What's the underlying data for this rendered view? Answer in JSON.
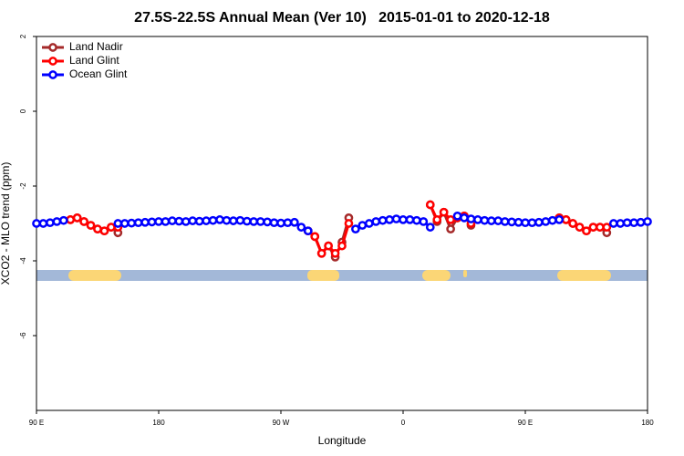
{
  "chart_data": {
    "type": "line",
    "title": "27.5S-22.5S Annual Mean (Ver 10)   2015-01-01 to 2020-12-18",
    "x_label": "Longitude",
    "y_label": "XCO2 - MLO trend (ppm)",
    "xlim": [
      90,
      540
    ],
    "ylim": [
      -8,
      2
    ],
    "xticks": [
      {
        "value": 90,
        "label": "90 E"
      },
      {
        "value": 180,
        "label": "180"
      },
      {
        "value": 270,
        "label": "90 W"
      },
      {
        "value": 360,
        "label": "0"
      },
      {
        "value": 450,
        "label": "90 E"
      },
      {
        "value": 540,
        "label": "180"
      }
    ],
    "yticks": [
      2,
      0,
      -2,
      -4,
      -6
    ],
    "legend": "top-left",
    "x": [
      90,
      95,
      100,
      105,
      110,
      115,
      120,
      125,
      130,
      135,
      140,
      145,
      150,
      155,
      160,
      165,
      170,
      175,
      180,
      185,
      190,
      195,
      200,
      205,
      210,
      215,
      220,
      225,
      230,
      235,
      240,
      245,
      250,
      255,
      260,
      265,
      270,
      275,
      280,
      285,
      290,
      295,
      300,
      305,
      310,
      315,
      320,
      325,
      330,
      335,
      340,
      345,
      350,
      355,
      360,
      365,
      370,
      375,
      380,
      385,
      390,
      395,
      400,
      405,
      410,
      415,
      420,
      425,
      430,
      435,
      440,
      445,
      450,
      455,
      460,
      465,
      470,
      475,
      480,
      485,
      490,
      495,
      500,
      505,
      510,
      515,
      520,
      525,
      530,
      535,
      540
    ],
    "series": [
      {
        "name": "Land Nadir",
        "color": "#a52a2a",
        "values": [
          null,
          null,
          null,
          null,
          null,
          -2.9,
          -2.85,
          -2.95,
          -3.05,
          -3.15,
          -3.2,
          -3.1,
          -3.25,
          null,
          null,
          null,
          null,
          null,
          null,
          null,
          null,
          null,
          null,
          null,
          null,
          null,
          null,
          null,
          null,
          null,
          null,
          null,
          null,
          null,
          null,
          null,
          null,
          null,
          null,
          null,
          -3.2,
          -3.35,
          -3.8,
          -3.6,
          -3.9,
          -3.5,
          -2.85,
          null,
          null,
          null,
          null,
          null,
          null,
          null,
          null,
          null,
          null,
          null,
          -2.5,
          -2.95,
          -2.7,
          -3.15,
          -2.85,
          -2.8,
          -3.05,
          null,
          null,
          null,
          null,
          null,
          null,
          null,
          null,
          null,
          null,
          null,
          null,
          -2.85,
          -2.9,
          -3.0,
          -3.1,
          -3.2,
          -3.1,
          -3.1,
          -3.25,
          null,
          null,
          null,
          null,
          null,
          null
        ]
      },
      {
        "name": "Land Glint",
        "color": "#ff0000",
        "values": [
          null,
          null,
          null,
          null,
          null,
          -2.9,
          -2.85,
          -2.95,
          -3.05,
          -3.15,
          -3.2,
          -3.1,
          -3.1,
          null,
          null,
          null,
          null,
          null,
          null,
          null,
          null,
          null,
          null,
          null,
          null,
          null,
          null,
          null,
          null,
          null,
          null,
          null,
          null,
          null,
          null,
          null,
          null,
          null,
          null,
          null,
          -3.2,
          -3.35,
          -3.8,
          -3.6,
          -3.8,
          -3.6,
          -3.0,
          null,
          null,
          null,
          null,
          null,
          null,
          null,
          null,
          null,
          null,
          null,
          -2.5,
          -2.9,
          -2.7,
          -2.9,
          -2.85,
          -2.8,
          -3.0,
          null,
          null,
          null,
          null,
          null,
          null,
          null,
          null,
          null,
          null,
          null,
          null,
          -2.85,
          -2.9,
          -3.0,
          -3.1,
          -3.2,
          -3.1,
          -3.1,
          -3.1,
          null,
          null,
          null,
          null,
          null,
          null
        ]
      },
      {
        "name": "Ocean Glint",
        "color": "#0000ff",
        "values": [
          -3.0,
          -3.0,
          -2.98,
          -2.95,
          -2.92,
          null,
          null,
          null,
          null,
          null,
          null,
          null,
          -3.0,
          -3.0,
          -2.99,
          -2.98,
          -2.97,
          -2.96,
          -2.95,
          -2.95,
          -2.93,
          -2.94,
          -2.95,
          -2.93,
          -2.94,
          -2.93,
          -2.92,
          -2.9,
          -2.92,
          -2.93,
          -2.92,
          -2.94,
          -2.95,
          -2.95,
          -2.96,
          -2.98,
          -2.99,
          -2.98,
          -2.97,
          -3.1,
          -3.2,
          null,
          null,
          null,
          null,
          null,
          null,
          -3.15,
          -3.05,
          -3.0,
          -2.95,
          -2.92,
          -2.9,
          -2.88,
          -2.9,
          -2.9,
          -2.92,
          -2.95,
          -3.1,
          null,
          null,
          null,
          -2.8,
          -2.85,
          -2.88,
          -2.9,
          -2.92,
          -2.93,
          -2.93,
          -2.95,
          -2.96,
          -2.97,
          -2.98,
          -2.98,
          -2.97,
          -2.95,
          -2.92,
          -2.9,
          null,
          null,
          null,
          null,
          null,
          null,
          null,
          -3.0,
          -3.0,
          -2.98,
          -2.98,
          -2.97,
          -2.95
        ]
      }
    ]
  }
}
